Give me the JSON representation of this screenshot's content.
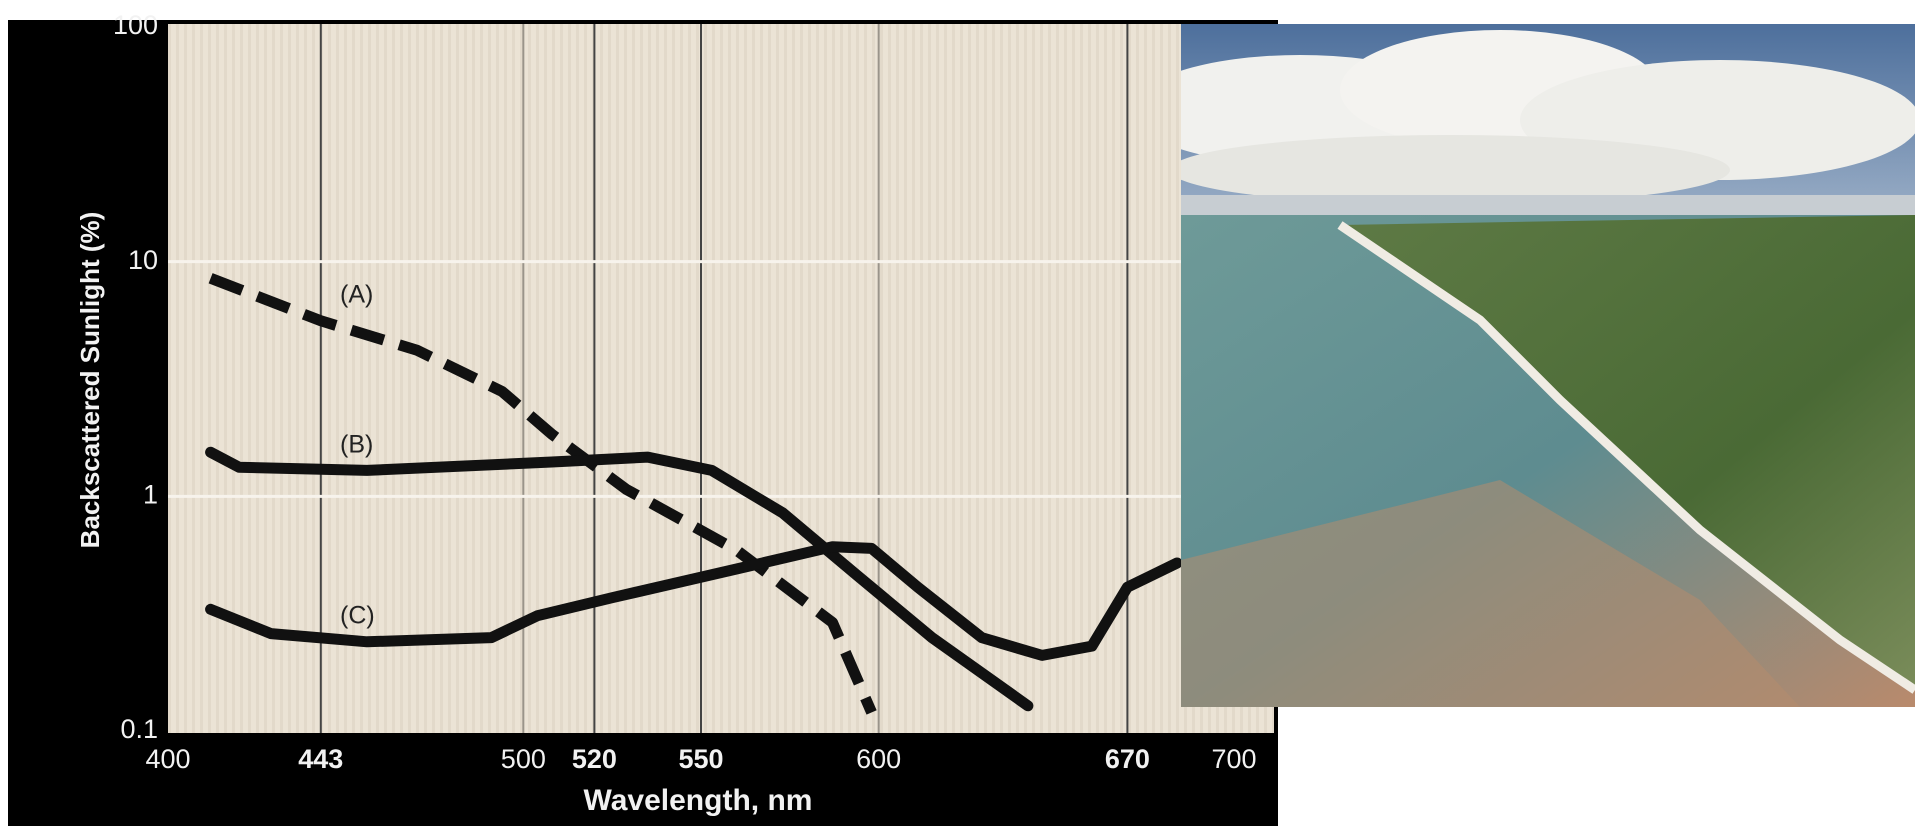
{
  "chart_data": {
    "type": "line",
    "x_label": "Wavelength, nm",
    "y_label": "Backscattered Sunlight (%)",
    "xlim": [
      400,
      700
    ],
    "ylim": [
      0.1,
      100
    ],
    "log_y": true,
    "grid": true,
    "xticks": [
      400,
      443,
      500,
      520,
      550,
      600,
      670,
      700
    ],
    "yticks": [
      0.1,
      1,
      10,
      100
    ],
    "series": [
      {
        "name": "(A)",
        "color": "#111111",
        "dashed": true,
        "x": [
          412,
          443,
          470,
          494,
          508,
          529,
          560,
          587,
          598
        ],
        "values": [
          8.5,
          5.6,
          4.2,
          2.8,
          1.84,
          1.07,
          0.59,
          0.29,
          0.12
        ]
      },
      {
        "name": "(B)",
        "color": "#111111",
        "dashed": false,
        "x": [
          412,
          420,
          456,
          508,
          535,
          553,
          573,
          594,
          615,
          642
        ],
        "values": [
          1.54,
          1.33,
          1.29,
          1.4,
          1.47,
          1.29,
          0.85,
          0.46,
          0.25,
          0.128
        ]
      },
      {
        "name": "(C)",
        "color": "#111111",
        "dashed": false,
        "x": [
          412,
          429,
          456,
          491,
          504,
          525,
          560,
          587,
          598,
          611,
          629,
          646,
          660,
          670,
          684
        ],
        "values": [
          0.33,
          0.26,
          0.24,
          0.25,
          0.31,
          0.37,
          0.49,
          0.61,
          0.6,
          0.41,
          0.25,
          0.21,
          0.23,
          0.41,
          0.52
        ]
      }
    ]
  }
}
